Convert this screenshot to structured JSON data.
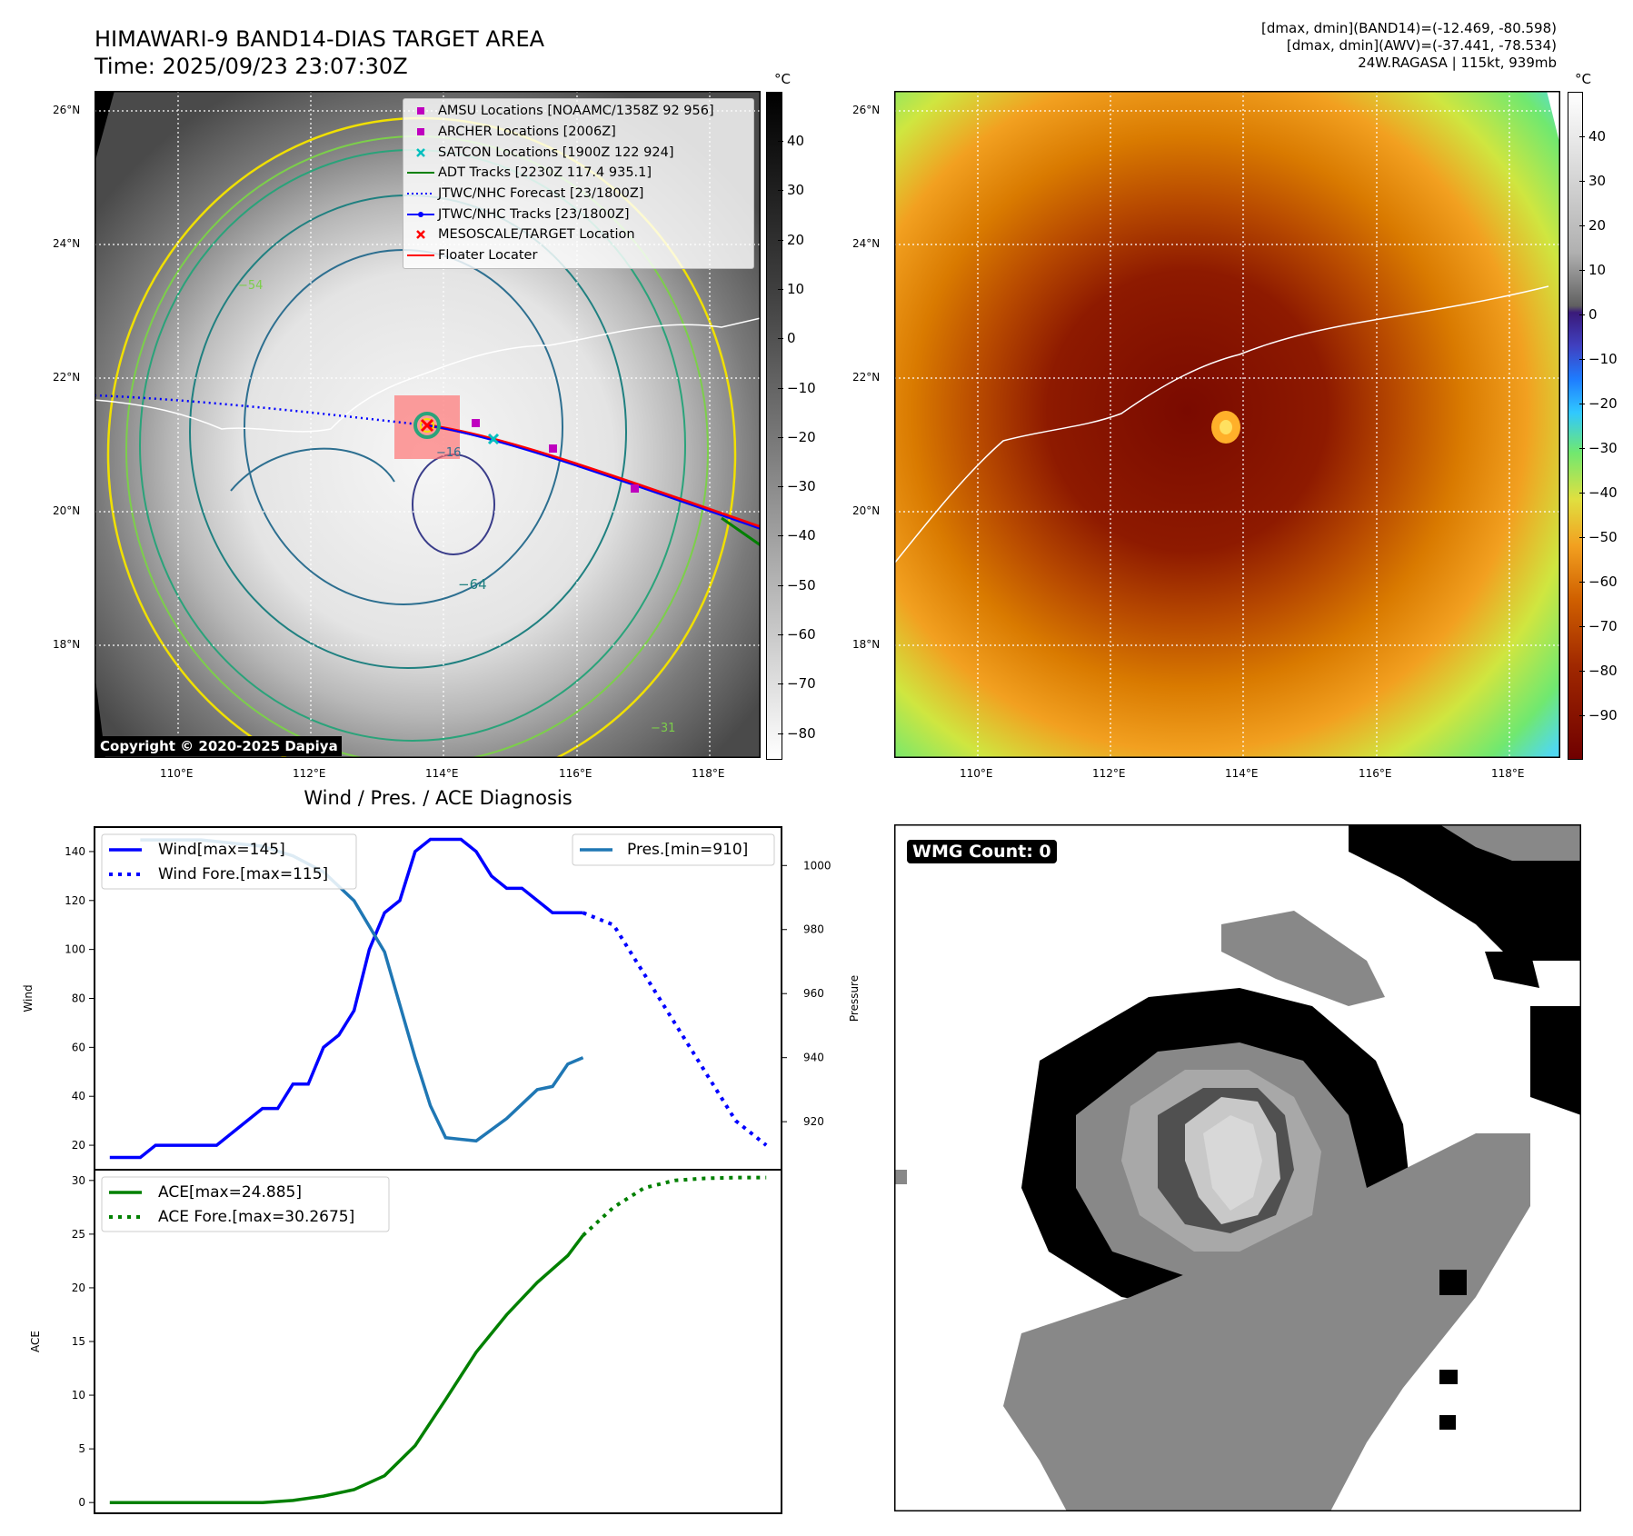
{
  "header": {
    "title_line1": "HIMAWARI-9 BAND14-DIAS TARGET AREA",
    "title_line2": "Time: 2025/09/23 23:07:30Z",
    "info_line1": "[dmax, dmin](BAND14)=(-12.469, -80.598)",
    "info_line2": "[dmax, dmin](AWV)=(-37.441, -78.534)",
    "info_line3": "24W.RAGASA | 115kt, 939mb"
  },
  "map_axes": {
    "lat_labels": [
      "26°N",
      "24°N",
      "22°N",
      "20°N",
      "18°N"
    ],
    "lon_labels": [
      "110°E",
      "112°E",
      "114°E",
      "116°E",
      "118°E"
    ]
  },
  "bw_colorbar": {
    "unit": "°C",
    "ticks": [
      "40",
      "30",
      "20",
      "10",
      "0",
      "−10",
      "−20",
      "−30",
      "−40",
      "−50",
      "−60",
      "−70",
      "−80"
    ]
  },
  "color_colorbar": {
    "unit": "°C",
    "ticks": [
      "40",
      "30",
      "20",
      "10",
      "0",
      "−10",
      "−20",
      "−30",
      "−40",
      "−50",
      "−60",
      "−70",
      "−80",
      "−90"
    ]
  },
  "legend": {
    "items": [
      {
        "label": "AMSU Locations [NOAAMC/1358Z 92 956]",
        "symbol": "square",
        "color": "#bf00bf"
      },
      {
        "label": "ARCHER Locations [2006Z]",
        "symbol": "square",
        "color": "#bf00bf"
      },
      {
        "label": "SATCON Locations [1900Z 122 924]",
        "symbol": "x",
        "color": "#00bfbf"
      },
      {
        "label": "ADT Tracks [2230Z 117.4 935.1]",
        "symbol": "line",
        "color": "#008000"
      },
      {
        "label": "JTWC/NHC Forecast [23/1800Z]",
        "symbol": "dotted",
        "color": "#0000ff"
      },
      {
        "label": "JTWC/NHC Tracks [23/1800Z]",
        "symbol": "line-dot",
        "color": "#0000ff"
      },
      {
        "label": "MESOSCALE/TARGET Location",
        "symbol": "x",
        "color": "#ff0000"
      },
      {
        "label": "Floater Locater",
        "symbol": "line",
        "color": "#ff0000"
      }
    ]
  },
  "map_labels": {
    "copyright": "Copyright © 2020-2025 Dapiya",
    "contour_64": "−64",
    "contour_54": "−54",
    "contour_31": "−31",
    "contour_16": "−16"
  },
  "wmg": {
    "label": "WMG Count: 0"
  },
  "chart_data": [
    {
      "type": "line",
      "title": "Wind / Pres. / ACE Diagnosis",
      "ylabel": "Wind",
      "ylabel_right": "Pressure",
      "ylim": [
        10,
        150
      ],
      "ylim_right": [
        905,
        1012
      ],
      "yticks": [
        20,
        40,
        60,
        80,
        100,
        120,
        140
      ],
      "yticks_right": [
        920,
        940,
        960,
        980,
        1000
      ],
      "series": [
        {
          "name": "Wind[max=145]",
          "axis": "left",
          "style": "solid",
          "color": "#0000ff",
          "x": [
            0,
            1,
            2,
            3,
            4,
            5,
            6,
            7,
            8,
            9,
            10,
            11,
            12,
            13,
            14,
            15,
            16,
            17,
            18,
            19,
            20,
            21,
            22,
            23,
            24,
            25,
            26,
            27,
            28,
            29,
            30,
            31
          ],
          "values": [
            15,
            15,
            15,
            20,
            20,
            20,
            20,
            20,
            25,
            30,
            35,
            35,
            45,
            45,
            60,
            65,
            75,
            100,
            115,
            120,
            140,
            145,
            145,
            145,
            140,
            130,
            125,
            125,
            120,
            115,
            115,
            115
          ]
        },
        {
          "name": "Wind Fore.[max=115]",
          "axis": "left",
          "style": "dotted",
          "color": "#0000ff",
          "x": [
            31,
            33,
            35,
            37,
            39,
            41,
            43
          ],
          "values": [
            115,
            110,
            90,
            70,
            50,
            30,
            20
          ]
        },
        {
          "name": "Pres.[min=910]",
          "axis": "right",
          "style": "solid",
          "color": "#1f77b4",
          "x": [
            2,
            4,
            6,
            8,
            10,
            12,
            14,
            16,
            18,
            20,
            21,
            22,
            24,
            26,
            28,
            29,
            30,
            31
          ],
          "values": [
            1008,
            1008,
            1008,
            1007,
            1006,
            1003,
            998,
            989,
            973,
            940,
            925,
            915,
            914,
            921,
            930,
            931,
            938,
            940
          ]
        }
      ]
    },
    {
      "type": "line",
      "ylabel": "ACE",
      "ylim": [
        -1,
        31
      ],
      "yticks": [
        0,
        5,
        10,
        15,
        20,
        25,
        30
      ],
      "series": [
        {
          "name": "ACE[max=24.885]",
          "style": "solid",
          "color": "#008000",
          "x": [
            0,
            2,
            4,
            6,
            8,
            10,
            12,
            14,
            16,
            18,
            20,
            22,
            24,
            26,
            28,
            30,
            31
          ],
          "values": [
            0,
            0,
            0,
            0,
            0,
            0,
            0.2,
            0.6,
            1.2,
            2.5,
            5.3,
            9.6,
            14,
            17.5,
            20.5,
            23,
            24.885
          ]
        },
        {
          "name": "ACE Fore.[max=30.2675]",
          "style": "dotted",
          "color": "#008000",
          "x": [
            31,
            33,
            35,
            37,
            39,
            41,
            43
          ],
          "values": [
            24.885,
            27.5,
            29.3,
            30.0,
            30.2,
            30.2675,
            30.2675
          ]
        }
      ]
    }
  ]
}
